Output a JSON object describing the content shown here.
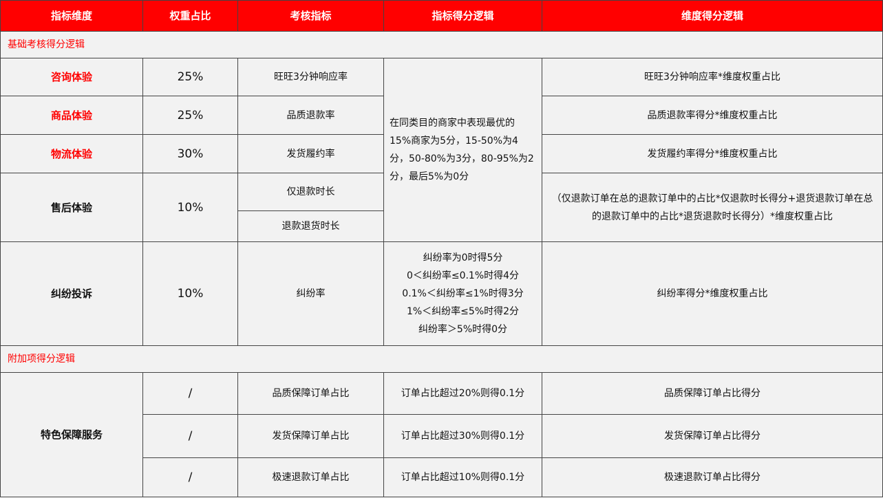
{
  "colors": {
    "header_bg": "#ff0000",
    "accent": "#ff0000",
    "cell_bg": "#f2f2f2"
  },
  "headers": [
    "指标维度",
    "权重占比",
    "考核指标",
    "指标得分逻辑",
    "维度得分逻辑"
  ],
  "basic": {
    "section": "基础考核得分逻辑",
    "shared_logic": "在同类目的商家中表现最优的15%商家为5分，15-50%为4分，50-80%为3分，80-95%为2分，最后5%为0分",
    "rows": [
      {
        "dim": "咨询体验",
        "weight": "25%",
        "metric": "旺旺3分钟响应率",
        "dim_logic": "旺旺3分钟响应率*维度权重占比"
      },
      {
        "dim": "商品体验",
        "weight": "25%",
        "metric": "品质退款率",
        "dim_logic": "品质退款率得分*维度权重占比"
      },
      {
        "dim": "物流体验",
        "weight": "30%",
        "metric": "发货履约率",
        "dim_logic": "发货履约率得分*维度权重占比"
      },
      {
        "dim": "售后体验",
        "weight": "10%",
        "metrics": [
          "仅退款时长",
          "退款退货时长"
        ],
        "dim_logic": "（仅退款订单在总的退款订单中的占比*仅退款时长得分+退货退款订单在总的退款订单中的占比*退货退款时长得分）*维度权重占比"
      },
      {
        "dim": "纠纷投诉",
        "weight": "10%",
        "metric": "纠纷率",
        "logic_lines": [
          "纠纷率为0时得5分",
          "0＜纠纷率≤0.1%时得4分",
          "0.1%＜纠纷率≤1%时得3分",
          "1%＜纠纷率≤5%时得2分",
          "纠纷率＞5%时得0分"
        ],
        "dim_logic": "纠纷率得分*维度权重占比"
      }
    ]
  },
  "extra": {
    "section": "附加项得分逻辑",
    "dim": "特色保障服务",
    "rows": [
      {
        "weight": "/",
        "metric": "品质保障订单占比",
        "logic": "订单占比超过20%则得0.1分",
        "dim_logic": "品质保障订单占比得分"
      },
      {
        "weight": "/",
        "metric": "发货保障订单占比",
        "logic": "订单占比超过30%则得0.1分",
        "dim_logic": "发货保障订单占比得分"
      },
      {
        "weight": "/",
        "metric": "极速退款订单占比",
        "logic": "订单占比超过10%则得0.1分",
        "dim_logic": "极速退款订单占比得分"
      }
    ]
  }
}
